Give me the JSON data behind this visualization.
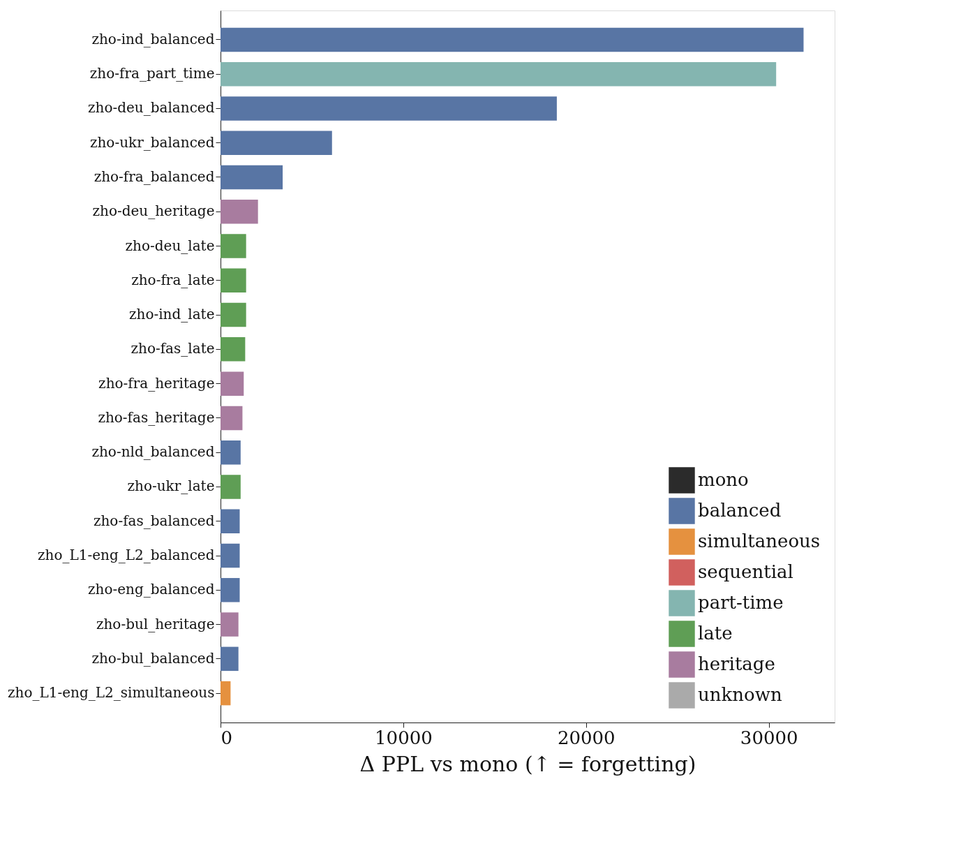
{
  "chart_data": {
    "type": "bar",
    "orientation": "horizontal",
    "xlabel": "Δ PPL vs mono (↑ = forgetting)",
    "categories": [
      "zho-ind_balanced",
      "zho-fra_part_time",
      "zho-deu_balanced",
      "zho-ukr_balanced",
      "zho-fra_balanced",
      "zho-deu_heritage",
      "zho-deu_late",
      "zho-fra_late",
      "zho-ind_late",
      "zho-fas_late",
      "zho-fra_heritage",
      "zho-fas_heritage",
      "zho-nld_balanced",
      "zho-ukr_late",
      "zho-fas_balanced",
      "zho_L1-eng_L2_balanced",
      "zho-eng_balanced",
      "zho-bul_heritage",
      "zho-bul_balanced",
      "zho_L1-eng_L2_simultaneous"
    ],
    "series": [
      {
        "name": "mono",
        "color": "#2b2b2b",
        "values": [
          null,
          null,
          null,
          null,
          null,
          null,
          null,
          null,
          null,
          null,
          null,
          null,
          null,
          null,
          null,
          null,
          null,
          null,
          null,
          null
        ]
      },
      {
        "name": "balanced",
        "color": "#5875a4",
        "values": [
          31900,
          null,
          18400,
          6100,
          3400,
          null,
          null,
          null,
          null,
          null,
          null,
          null,
          1100,
          null,
          1050,
          1050,
          1050,
          null,
          980,
          null
        ]
      },
      {
        "name": "simultaneous",
        "color": "#e5913f",
        "values": [
          null,
          null,
          null,
          null,
          null,
          null,
          null,
          null,
          null,
          null,
          null,
          null,
          null,
          null,
          null,
          null,
          null,
          null,
          null,
          550
        ]
      },
      {
        "name": "sequential",
        "color": "#d1605e",
        "values": [
          null,
          null,
          null,
          null,
          null,
          null,
          null,
          null,
          null,
          null,
          null,
          null,
          null,
          null,
          null,
          null,
          null,
          null,
          null,
          null
        ]
      },
      {
        "name": "part-time",
        "color": "#84b5b0",
        "values": [
          null,
          30400,
          null,
          null,
          null,
          null,
          null,
          null,
          null,
          null,
          null,
          null,
          null,
          null,
          null,
          null,
          null,
          null,
          null,
          null
        ]
      },
      {
        "name": "late",
        "color": "#5f9e55",
        "values": [
          null,
          null,
          null,
          null,
          null,
          null,
          1400,
          1400,
          1400,
          1350,
          null,
          null,
          null,
          1100,
          null,
          null,
          null,
          null,
          null,
          null
        ]
      },
      {
        "name": "heritage",
        "color": "#a87c9f",
        "values": [
          null,
          null,
          null,
          null,
          null,
          2050,
          null,
          null,
          null,
          null,
          1270,
          1200,
          null,
          null,
          null,
          null,
          null,
          980,
          null,
          null
        ]
      },
      {
        "name": "unknown",
        "color": "#aaaaaa",
        "values": [
          null,
          null,
          null,
          null,
          null,
          null,
          null,
          null,
          null,
          null,
          null,
          null,
          null,
          null,
          null,
          null,
          null,
          null,
          null,
          null
        ]
      }
    ],
    "xlim": [
      0,
      33600
    ],
    "xticks": [
      0,
      10000,
      20000,
      30000
    ],
    "grid": false,
    "legend": "bottom right"
  }
}
